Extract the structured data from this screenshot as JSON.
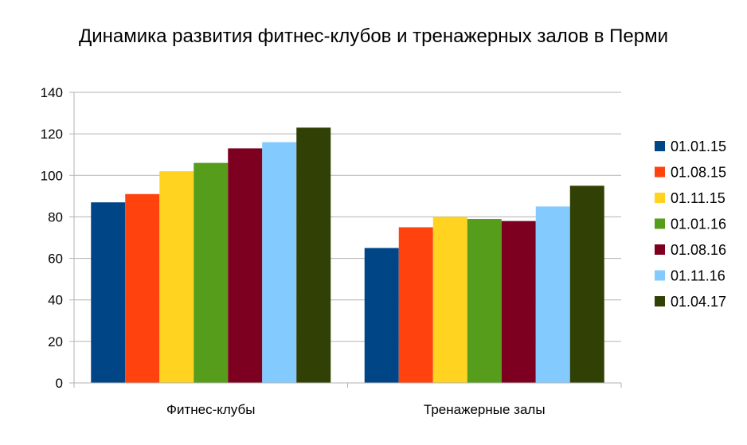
{
  "chart_data": {
    "type": "bar",
    "title": "Динамика развития фитнес-клубов и тренажерных залов в Перми",
    "xlabel": "",
    "ylabel": "",
    "ylim": [
      0,
      140
    ],
    "yticks": [
      0,
      20,
      40,
      60,
      80,
      100,
      120,
      140
    ],
    "grid": true,
    "legend_position": "right",
    "categories": [
      "Фитнес-клубы",
      "Тренажерные залы"
    ],
    "series": [
      {
        "name": "01.01.15",
        "color": "#004586",
        "values": [
          87,
          65
        ]
      },
      {
        "name": "01.08.15",
        "color": "#ff420e",
        "values": [
          91,
          75
        ]
      },
      {
        "name": "01.11.15",
        "color": "#ffd320",
        "values": [
          102,
          80
        ]
      },
      {
        "name": "01.01.16",
        "color": "#579d1c",
        "values": [
          106,
          79
        ]
      },
      {
        "name": "01.08.16",
        "color": "#7e0021",
        "values": [
          113,
          78
        ]
      },
      {
        "name": "01.11.16",
        "color": "#83caff",
        "values": [
          116,
          85
        ]
      },
      {
        "name": "01.04.17",
        "color": "#314004",
        "values": [
          123,
          95
        ]
      }
    ]
  }
}
